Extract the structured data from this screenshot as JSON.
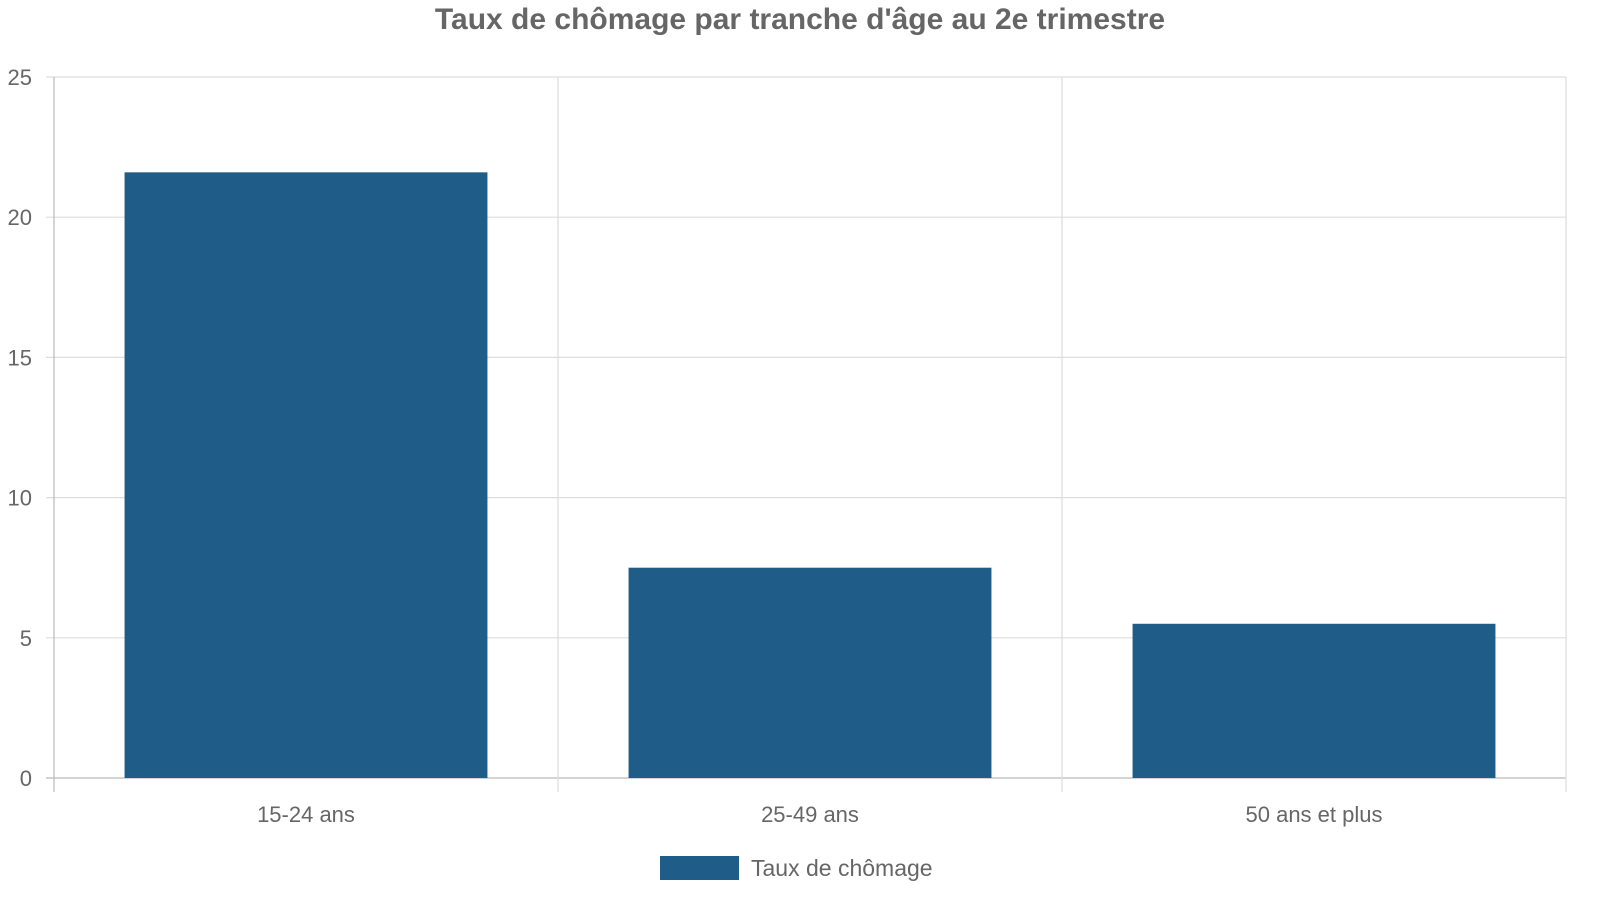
{
  "chart_data": {
    "type": "bar",
    "title": "Taux de chômage par tranche d'âge au 2e trimestre",
    "xlabel": "",
    "ylabel": "",
    "categories": [
      "15-24 ans",
      "25-49 ans",
      "50 ans et plus"
    ],
    "series": [
      {
        "name": "Taux de chômage",
        "values": [
          21.6,
          7.5,
          5.5
        ],
        "color": "#1f5c87"
      }
    ],
    "ylim": [
      0,
      25
    ],
    "yticks": [
      0,
      5,
      10,
      15,
      20,
      25
    ],
    "grid": true,
    "legend_position": "bottom-center"
  }
}
